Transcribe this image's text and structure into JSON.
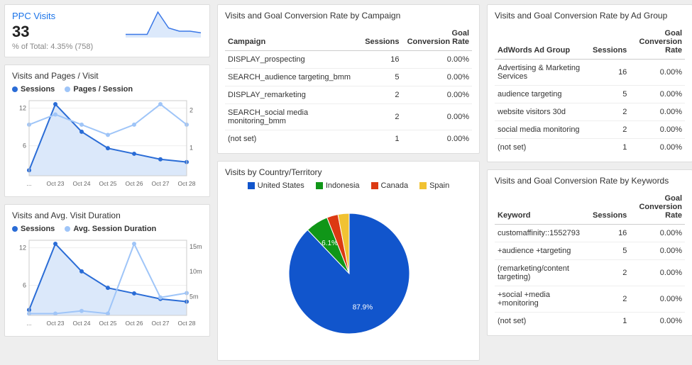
{
  "ppc": {
    "title": "PPC Visits",
    "value": "33",
    "subtext": "% of Total: 4.35% (758)",
    "spark": {
      "points": [
        1,
        1,
        1,
        8,
        3,
        2,
        2,
        1.5
      ],
      "stroke": "#3b78e7",
      "fill": "#dce9fb"
    }
  },
  "chart1": {
    "title": "Visits and Pages / Visit",
    "series_a_label": "Sessions",
    "series_b_label": "Pages / Session",
    "color_a": "#2a6cd6",
    "color_b": "#9fc5f8",
    "fill_a": "#dbe8fa",
    "x_labels": [
      "...",
      "Oct 23",
      "Oct 24",
      "Oct 25",
      "Oct 26",
      "Oct 27",
      "Oct 28"
    ],
    "y_left": [
      "12",
      "6"
    ],
    "y_right": [
      "2",
      "1"
    ],
    "series_a": [
      1,
      13,
      8,
      5,
      4,
      3,
      2.5
    ],
    "series_b": [
      5,
      6,
      5,
      4,
      5,
      7,
      5
    ]
  },
  "chart2": {
    "title": "Visits and Avg. Visit Duration",
    "series_a_label": "Sessions",
    "series_b_label": "Avg. Session Duration",
    "color_a": "#2a6cd6",
    "color_b": "#9fc5f8",
    "fill_a": "#dbe8fa",
    "x_labels": [
      "...",
      "Oct 23",
      "Oct 24",
      "Oct 25",
      "Oct 26",
      "Oct 27",
      "Oct 28"
    ],
    "y_left": [
      "12",
      "6"
    ],
    "y_right": [
      "15m",
      "10m",
      "5m"
    ],
    "series_a": [
      1,
      13,
      8,
      5,
      4,
      3,
      2.5
    ],
    "series_b": [
      0.2,
      0.2,
      0.5,
      0.2,
      8,
      2,
      2.5
    ]
  },
  "campaign": {
    "title": "Visits and Goal Conversion Rate by Campaign",
    "cols": [
      "Campaign",
      "Sessions",
      "Goal Conversion Rate"
    ],
    "rows": [
      [
        "DISPLAY_prospecting",
        "16",
        "0.00%"
      ],
      [
        "SEARCH_audience targeting_bmm",
        "5",
        "0.00%"
      ],
      [
        "DISPLAY_remarketing",
        "2",
        "0.00%"
      ],
      [
        "SEARCH_social media monitoring_bmm",
        "2",
        "0.00%"
      ],
      [
        "(not set)",
        "1",
        "0.00%"
      ]
    ]
  },
  "country": {
    "title": "Visits by Country/Territory",
    "legend": [
      {
        "label": "United States",
        "color": "#1155cc"
      },
      {
        "label": "Indonesia",
        "color": "#109618"
      },
      {
        "label": "Canada",
        "color": "#dc3912"
      },
      {
        "label": "Spain",
        "color": "#f1c232"
      }
    ],
    "slices": [
      {
        "pct": 87.9,
        "color": "#1155cc",
        "label": "87.9%"
      },
      {
        "pct": 6.1,
        "color": "#109618",
        "label": "6.1%"
      },
      {
        "pct": 3.0,
        "color": "#dc3912",
        "label": ""
      },
      {
        "pct": 3.0,
        "color": "#f1c232",
        "label": ""
      }
    ]
  },
  "adgroup": {
    "title": "Visits and Goal Conversion Rate by Ad Group",
    "cols": [
      "AdWords Ad Group",
      "Sessions",
      "Goal Conversion Rate"
    ],
    "rows": [
      [
        "Advertising & Marketing Services",
        "16",
        "0.00%"
      ],
      [
        "audience targeting",
        "5",
        "0.00%"
      ],
      [
        "website visitors 30d",
        "2",
        "0.00%"
      ],
      [
        "social media monitoring",
        "2",
        "0.00%"
      ],
      [
        "(not set)",
        "1",
        "0.00%"
      ]
    ]
  },
  "keywords": {
    "title": "Visits and Goal Conversion Rate by Keywords",
    "cols": [
      "Keyword",
      "Sessions",
      "Goal Conversion Rate"
    ],
    "rows": [
      [
        "customaffinity::1552793",
        "16",
        "0.00%"
      ],
      [
        "+audience +targeting",
        "5",
        "0.00%"
      ],
      [
        "(remarketing/content targeting)",
        "2",
        "0.00%"
      ],
      [
        "+social +media +monitoring",
        "2",
        "0.00%"
      ],
      [
        "(not set)",
        "1",
        "0.00%"
      ]
    ]
  }
}
